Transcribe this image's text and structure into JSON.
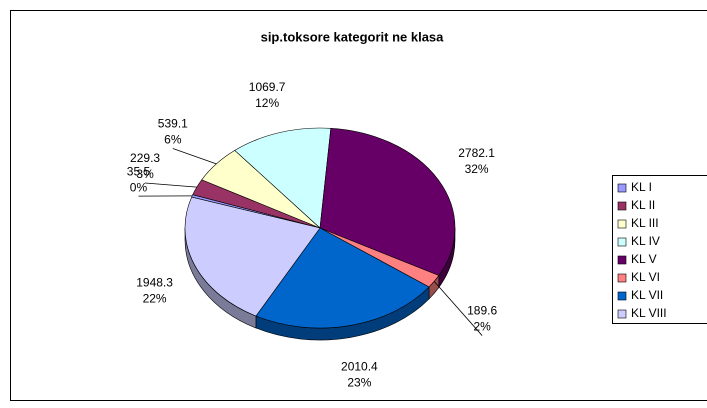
{
  "chart_data": {
    "type": "pie",
    "title": "sip.toksore kategorit ne klasa",
    "categories": [
      "KL I",
      "KL II",
      "KL III",
      "KL IV",
      "KL V",
      "KL VI",
      "KL VII",
      "KL VIII"
    ],
    "values": [
      35.5,
      229.3,
      539.1,
      1069.7,
      2782.1,
      189.6,
      2010.4,
      1948.3
    ],
    "percent_labels": [
      "0%",
      "3%",
      "6%",
      "12%",
      "32%",
      "2%",
      "23%",
      "22%"
    ],
    "colors": [
      "#9999ff",
      "#993366",
      "#ffffcc",
      "#ccffff",
      "#660066",
      "#ff8080",
      "#0066cc",
      "#ccccff"
    ],
    "legend": "right"
  }
}
